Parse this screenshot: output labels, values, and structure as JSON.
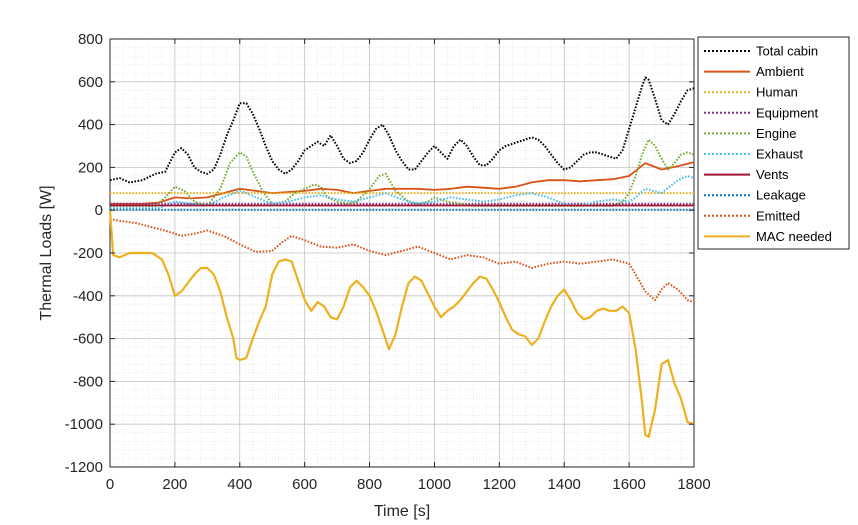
{
  "chart_data": {
    "type": "line",
    "title": "",
    "xlabel": "Time [s]",
    "ylabel": "Thermal Loads [W]",
    "xlim": [
      0,
      1800
    ],
    "ylim": [
      -1200,
      800
    ],
    "xticks": [
      "0",
      "200",
      "400",
      "600",
      "800",
      "1000",
      "1200",
      "1400",
      "1600",
      "1800"
    ],
    "yticks": [
      "800",
      "600",
      "400",
      "200",
      "0",
      "-200",
      "-400",
      "-600",
      "-800",
      "-1000",
      "-1200"
    ],
    "grid": true,
    "minor_grid": true,
    "legend_position": "outside-top-right",
    "series": [
      {
        "name": "Total cabin",
        "color": "#000000",
        "style": "dotted",
        "x": [
          0,
          30,
          60,
          100,
          140,
          170,
          200,
          220,
          240,
          260,
          280,
          300,
          320,
          340,
          360,
          380,
          400,
          420,
          440,
          460,
          480,
          500,
          520,
          540,
          560,
          580,
          600,
          620,
          640,
          660,
          680,
          700,
          720,
          740,
          760,
          780,
          800,
          820,
          840,
          860,
          880,
          900,
          920,
          940,
          960,
          980,
          1000,
          1020,
          1040,
          1060,
          1080,
          1100,
          1120,
          1140,
          1160,
          1180,
          1200,
          1220,
          1240,
          1260,
          1280,
          1300,
          1320,
          1340,
          1360,
          1380,
          1400,
          1420,
          1440,
          1460,
          1480,
          1500,
          1520,
          1540,
          1560,
          1580,
          1600,
          1620,
          1640,
          1650,
          1660,
          1680,
          1700,
          1720,
          1740,
          1760,
          1780,
          1800
        ],
        "y": [
          140,
          150,
          130,
          140,
          170,
          180,
          270,
          290,
          260,
          200,
          180,
          170,
          190,
          260,
          350,
          420,
          500,
          500,
          450,
          380,
          300,
          230,
          190,
          170,
          190,
          230,
          280,
          300,
          320,
          300,
          350,
          300,
          240,
          220,
          230,
          270,
          330,
          380,
          400,
          350,
          280,
          230,
          190,
          190,
          230,
          270,
          300,
          270,
          240,
          300,
          330,
          300,
          250,
          210,
          210,
          240,
          280,
          300,
          310,
          320,
          330,
          340,
          330,
          300,
          260,
          220,
          190,
          200,
          230,
          260,
          270,
          270,
          260,
          250,
          240,
          280,
          380,
          480,
          580,
          620,
          610,
          520,
          420,
          400,
          450,
          510,
          560,
          570
        ]
      },
      {
        "name": "Ambient",
        "color": "#d95319",
        "style": "solid",
        "x": [
          0,
          100,
          150,
          200,
          250,
          300,
          350,
          400,
          450,
          500,
          550,
          600,
          650,
          700,
          750,
          800,
          850,
          900,
          950,
          1000,
          1050,
          1100,
          1150,
          1200,
          1250,
          1300,
          1350,
          1400,
          1450,
          1500,
          1550,
          1600,
          1650,
          1700,
          1750,
          1800
        ],
        "y": [
          30,
          30,
          35,
          60,
          55,
          60,
          80,
          100,
          90,
          80,
          85,
          90,
          100,
          95,
          80,
          90,
          100,
          100,
          100,
          95,
          100,
          110,
          105,
          100,
          110,
          130,
          140,
          140,
          135,
          140,
          145,
          160,
          220,
          190,
          205,
          225
        ]
      },
      {
        "name": "Human",
        "color": "#edb120",
        "style": "dotted",
        "x": [
          0,
          1800
        ],
        "y": [
          80,
          80
        ]
      },
      {
        "name": "Equipment",
        "color": "#7e2f8e",
        "style": "dotted",
        "x": [
          0,
          1800
        ],
        "y": [
          30,
          30
        ]
      },
      {
        "name": "Engine",
        "color": "#77ac30",
        "style": "dotted",
        "x": [
          0,
          140,
          170,
          200,
          230,
          260,
          300,
          340,
          370,
          400,
          420,
          440,
          470,
          500,
          540,
          570,
          600,
          630,
          650,
          670,
          700,
          730,
          760,
          800,
          830,
          850,
          880,
          920,
          950,
          980,
          1000,
          1040,
          1080,
          1120,
          1160,
          1200,
          1250,
          1300,
          1350,
          1400,
          1450,
          1500,
          1550,
          1580,
          1600,
          1620,
          1640,
          1660,
          1680,
          1700,
          1720,
          1740,
          1760,
          1780,
          1800
        ],
        "y": [
          20,
          20,
          60,
          110,
          90,
          40,
          20,
          100,
          220,
          270,
          250,
          180,
          90,
          30,
          40,
          80,
          100,
          120,
          110,
          60,
          40,
          30,
          40,
          100,
          160,
          170,
          90,
          40,
          30,
          40,
          60,
          40,
          30,
          20,
          20,
          20,
          20,
          20,
          20,
          20,
          20,
          20,
          20,
          40,
          80,
          160,
          260,
          330,
          300,
          240,
          190,
          220,
          260,
          270,
          260
        ]
      },
      {
        "name": "Exhaust",
        "color": "#4dbeee",
        "style": "dotted",
        "x": [
          0,
          150,
          200,
          250,
          300,
          350,
          400,
          420,
          450,
          500,
          550,
          600,
          650,
          700,
          750,
          800,
          850,
          900,
          950,
          1000,
          1050,
          1100,
          1150,
          1200,
          1250,
          1300,
          1350,
          1400,
          1450,
          1500,
          1550,
          1600,
          1620,
          1650,
          1700,
          1750,
          1780,
          1800
        ],
        "y": [
          10,
          10,
          40,
          30,
          20,
          60,
          90,
          80,
          60,
          30,
          40,
          60,
          70,
          50,
          40,
          60,
          80,
          50,
          30,
          40,
          60,
          50,
          40,
          50,
          70,
          80,
          60,
          30,
          20,
          40,
          50,
          40,
          60,
          100,
          80,
          140,
          160,
          150
        ]
      },
      {
        "name": "Vents",
        "color": "#a2142f",
        "style": "solid",
        "x": [
          0,
          1800
        ],
        "y": [
          22,
          22
        ]
      },
      {
        "name": "Leakage",
        "color": "#0072bd",
        "style": "dotted",
        "x": [
          0,
          1800
        ],
        "y": [
          2,
          2
        ]
      },
      {
        "name": "Emitted",
        "color": "#d95319",
        "style": "dotted",
        "x": [
          0,
          30,
          80,
          130,
          180,
          220,
          260,
          300,
          350,
          400,
          450,
          500,
          530,
          560,
          600,
          650,
          700,
          750,
          800,
          850,
          900,
          950,
          1000,
          1050,
          1100,
          1150,
          1200,
          1250,
          1300,
          1350,
          1400,
          1450,
          1500,
          1550,
          1600,
          1620,
          1650,
          1680,
          1700,
          1720,
          1750,
          1780,
          1800
        ],
        "y": [
          -40,
          -50,
          -60,
          -80,
          -100,
          -120,
          -110,
          -95,
          -120,
          -160,
          -195,
          -190,
          -150,
          -120,
          -140,
          -170,
          -175,
          -160,
          -190,
          -210,
          -190,
          -170,
          -200,
          -230,
          -210,
          -220,
          -250,
          -240,
          -270,
          -250,
          -240,
          -250,
          -240,
          -230,
          -250,
          -300,
          -380,
          -420,
          -370,
          -340,
          -370,
          -420,
          -430
        ]
      },
      {
        "name": "MAC needed",
        "color": "#edb120",
        "style": "solid",
        "x": [
          0,
          10,
          30,
          60,
          100,
          130,
          160,
          180,
          200,
          220,
          240,
          260,
          280,
          300,
          320,
          340,
          360,
          380,
          390,
          400,
          420,
          440,
          460,
          480,
          500,
          520,
          540,
          560,
          580,
          600,
          620,
          640,
          660,
          680,
          700,
          720,
          740,
          760,
          780,
          800,
          820,
          840,
          860,
          880,
          900,
          920,
          940,
          960,
          980,
          1000,
          1020,
          1040,
          1060,
          1080,
          1100,
          1120,
          1140,
          1160,
          1180,
          1200,
          1220,
          1240,
          1260,
          1280,
          1300,
          1320,
          1340,
          1360,
          1380,
          1400,
          1420,
          1440,
          1460,
          1480,
          1500,
          1520,
          1540,
          1560,
          1580,
          1600,
          1620,
          1640,
          1650,
          1660,
          1680,
          1700,
          1720,
          1740,
          1760,
          1780,
          1800
        ],
        "y": [
          0,
          -210,
          -220,
          -200,
          -200,
          -200,
          -230,
          -300,
          -400,
          -380,
          -340,
          -300,
          -270,
          -270,
          -300,
          -380,
          -500,
          -600,
          -690,
          -700,
          -690,
          -600,
          -520,
          -450,
          -300,
          -240,
          -230,
          -240,
          -330,
          -420,
          -470,
          -430,
          -450,
          -500,
          -510,
          -450,
          -360,
          -330,
          -360,
          -400,
          -470,
          -560,
          -650,
          -580,
          -450,
          -340,
          -310,
          -330,
          -390,
          -450,
          -500,
          -470,
          -450,
          -420,
          -380,
          -340,
          -310,
          -320,
          -370,
          -430,
          -500,
          -560,
          -580,
          -590,
          -630,
          -600,
          -520,
          -450,
          -400,
          -370,
          -420,
          -480,
          -510,
          -500,
          -470,
          -460,
          -470,
          -470,
          -450,
          -480,
          -650,
          -900,
          -1050,
          -1060,
          -930,
          -720,
          -700,
          -810,
          -880,
          -990,
          -1000
        ]
      }
    ]
  }
}
